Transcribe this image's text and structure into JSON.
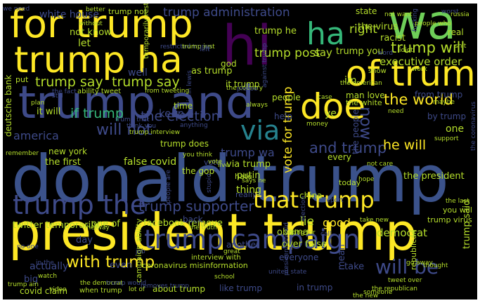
{
  "cloud": {
    "background": "#000000",
    "palette": {
      "yellow": "#fde725",
      "lime": "#b5de2b",
      "green": "#6ece58",
      "seagreen": "#35b779",
      "teal": "#1f9e89",
      "tealblue": "#26828e",
      "blue": "#31688e",
      "indigo": "#3e4989",
      "purple": "#482878",
      "darkpurple": "#440154"
    },
    "words": {
      "donald_trump": "donald trump",
      "president_trump": "president trump",
      "trump_and": "trump and",
      "for_trump": "for trump",
      "trump_ha": "trump ha",
      "hi": "hi",
      "wa": "wa",
      "of_trump": "of trump",
      "ha": "ha",
      "doe": "doe",
      "trump_campaign": "trump campaign",
      "trump_the": "trump the",
      "that_trump": "that trump",
      "via": "via",
      "will_be": "will be",
      "the_world": "the world",
      "trump_will": "trump will",
      "executive_order": "executive order",
      "trump_administration": "trump administration",
      "trump_supporter": "trump supporter",
      "with_trump": "with trump",
      "trump_say": "trump say",
      "now": "now",
      "vote_for_trump": "vote for trump",
      "and_trump": "and trump",
      "if_trump": "if trump",
      "the_election": "the election",
      "will_not": "will not",
      "he_will": "he will",
      "america": "america",
      "right": "right",
      "trump_post": "trump post",
      "white_house": "white house",
      "trump_not": "trump not",
      "not_know": "not know",
      "trump_he": "trump he",
      "the_virus": "the virus",
      "state": "state",
      "as_trump": "as trump",
      "trump_you": "trump you",
      "say": "say",
      "well": "well",
      "let": "let",
      "it_trump": "it trump",
      "keep": "keep",
      "trump_wa": "trump wa",
      "trump_does": "trump does",
      "new_york": "new york",
      "the_first": "the first",
      "false_covid": "false covid",
      "via_trump": "via trump",
      "putin": "putin",
      "thing": "thing",
      "lie": "lie",
      "good": "good",
      "democrat": "democrat",
      "obama": "obama",
      "twitter_temporarily": "twitter temporarily",
      "facebook_remove": "facebook remove",
      "one_of": "one of",
      "back": "back",
      "another": "another",
      "over_false": "over false",
      "actually": "actually",
      "even": "even",
      "everyone": "everyone",
      "covid_claim": "covid claim",
      "about_trump": "about trump",
      "like_trump": "like trump",
      "in_trump": "in trump",
      "take": "take",
      "mean": "mean",
      "the_president": "the president",
      "by_trump": "by trump",
      "one": "one",
      "from_trump": "from trump",
      "man_love": "man love",
      "the_white": "the white",
      "people": "people",
      "help": "help",
      "every": "every",
      "china": "china",
      "today": "today",
      "hate": "hate",
      "really": "really",
      "vote": "vote",
      "the_gop": "the gop",
      "im": "im",
      "god": "god",
      "deutsche_bank": "deutsche bank",
      "time": "time",
      "it_will": "it will",
      "day": "day",
      "big": "big",
      "the_people": "the people",
      "ye": "ye",
      "trump_said": "trump said",
      "republican": "republican",
      "trump_virus": "trump virus",
      "you_will": "you will",
      "real": "real",
      "racist": "racist",
      "idiot": "idiot",
      "shit": "shit",
      "fucking": "fucking",
      "ability_tweet": "ability tweet",
      "from_tweeting": "from tweeting",
      "campaign_ability": "campaign ability",
      "interview_with": "interview with",
      "coronavirus_misinformation": "coronavirus misinformation",
      "trump_interview": "trump interview",
      "temporarily_restricted": "temporarily restricted",
      "restricted_trump": "restricted trump",
      "trump_just": "trump just",
      "against_trump": "against trump",
      "people_who": "people who",
      "the_american": "the american",
      "the_fact": "the fact",
      "the_country": "the country",
      "the_republican": "the republican",
      "the_new": "the new",
      "the_democrat": "the democrat",
      "tweet_over": "tweet over",
      "voting_for": "voting for",
      "president_donald": "president donald",
      "the_truth": "the truth",
      "the_way": "the way",
      "trump_would": "trump would",
      "when_trump": "when trump",
      "lot_of": "lot of",
      "removes_trump": "removes trump",
      "united_state": "united state",
      "take_new": "take new",
      "go_away": "go away",
      "not_care": "not care",
      "no_one": "no one",
      "trump_ain": "trump ain",
      "in_the": "in the",
      "trump_that": "trump that",
      "think_you": "think you",
      "you_think": "you think",
      "says_he": "says he",
      "we_need": "we need",
      "not_want": "not want",
      "worst": "worst",
      "without": "without",
      "better": "better",
      "word": "word",
      "work": "work",
      "show": "show",
      "need": "need",
      "maybe": "maybe",
      "case": "case",
      "please": "please",
      "always": "always",
      "support": "support",
      "hope": "hope",
      "remember": "remember",
      "plan": "plan",
      "still": "still",
      "left": "left",
      "put": "put",
      "live": "live",
      "school": "school",
      "watch": "watch",
      "video": "video",
      "job": "job",
      "call": "call",
      "great": "great",
      "someone": "someone",
      "thought": "thought",
      "report": "report",
      "money": "money",
      "election": "election",
      "stupid": "stupid",
      "people_are": "people are",
      "anything": "anything",
      "the_last": "the last",
      "the_coronavirus": "the coronavirus",
      "john_lewis": "john lewis",
      "russia": "russia"
    }
  }
}
